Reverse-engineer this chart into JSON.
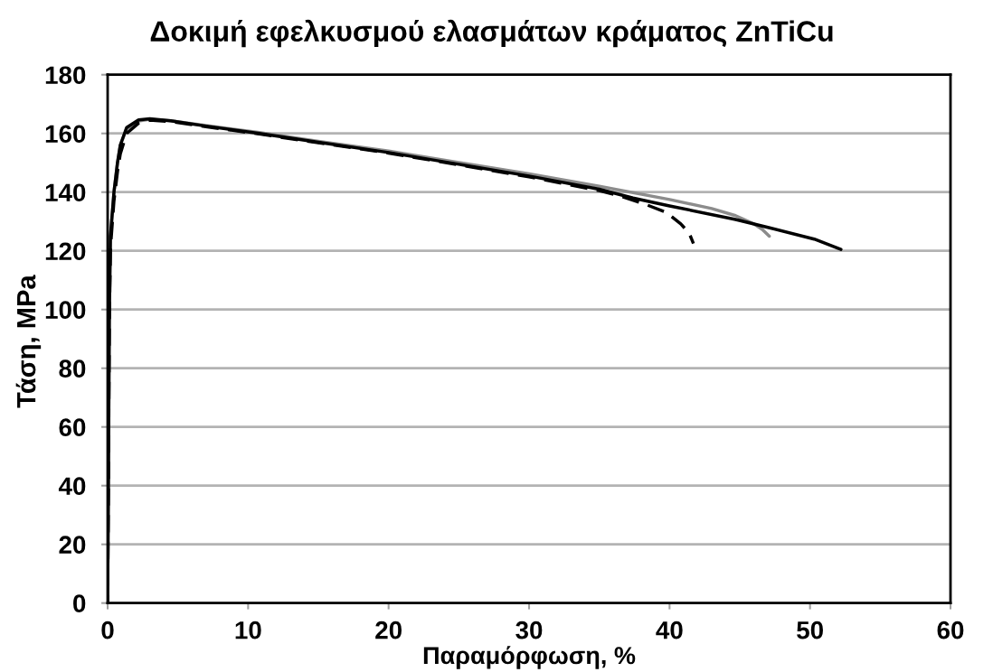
{
  "chart_data": {
    "type": "line",
    "title": "Δοκιμή εφελκυσμού ελασμάτων κράματος ZnTiCu",
    "xlabel": "Παραμόρφωση, %",
    "ylabel": "Τάση, MPa",
    "xlim": [
      0,
      60
    ],
    "ylim": [
      0,
      180
    ],
    "xticks": [
      0,
      10,
      20,
      30,
      40,
      50,
      60
    ],
    "yticks": [
      0,
      20,
      40,
      60,
      80,
      100,
      120,
      140,
      160,
      180
    ],
    "grid": "y",
    "line_style": "solid",
    "series": [
      {
        "color": "#8c8c8c",
        "x": [
          0,
          0.05,
          0.12,
          0.2,
          0.45,
          0.7,
          0.9,
          1.35,
          2.2,
          3,
          4.5,
          7,
          10.8,
          15,
          20,
          25,
          30,
          35,
          40,
          43,
          44.7,
          46,
          46.6,
          47.1
        ],
        "values": [
          0,
          38,
          99,
          125,
          140,
          150,
          156,
          161.5,
          164.2,
          164.8,
          164.3,
          162.7,
          160.3,
          157.3,
          154,
          150.1,
          146.2,
          142,
          137.5,
          134.4,
          132,
          129.2,
          127.3,
          125
        ]
      },
      {
        "color": "#000000",
        "x": [
          0,
          0.05,
          0.12,
          0.2,
          0.45,
          0.7,
          0.9,
          1.35,
          2.2,
          3,
          4.5,
          7,
          10.8,
          15,
          20,
          25,
          30,
          35,
          37.4,
          40,
          44.7,
          47,
          50.3,
          52.2
        ],
        "values": [
          0,
          38,
          99,
          125,
          140,
          150,
          156,
          162,
          164.6,
          165,
          164.3,
          162.5,
          160,
          157,
          153.5,
          149.5,
          145.5,
          141,
          138,
          135.3,
          130.7,
          128,
          124,
          120.5
        ]
      },
      {
        "color": "#000000",
        "line_style": "dashed",
        "x": [
          0,
          0.05,
          0.12,
          0.2,
          0.45,
          0.7,
          0.9,
          1.35,
          2.2,
          3,
          4.5,
          7,
          10.8,
          15,
          20,
          25,
          30,
          35,
          36.5,
          38.2,
          39.8,
          40.8,
          41.4,
          41.7
        ],
        "values": [
          0,
          36,
          95,
          121,
          137,
          147,
          153,
          160,
          163.5,
          164.5,
          164,
          162.3,
          159.8,
          156.8,
          153.3,
          149.3,
          145.2,
          140.5,
          138.7,
          136,
          133,
          129.2,
          126,
          122.5
        ]
      }
    ]
  }
}
